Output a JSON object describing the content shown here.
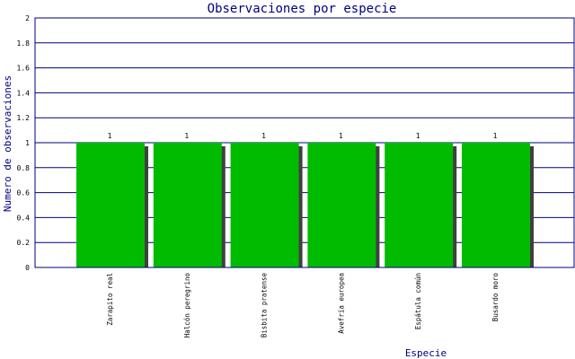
{
  "chart_data": {
    "type": "bar",
    "title": "Observaciones por especie",
    "xlabel": "Especie",
    "ylabel": "Numero de observaciones",
    "categories": [
      "Zarapito real",
      "Halcón peregrino",
      "Bisbita pratense",
      "Avefría europea",
      "Espátula común",
      "Busardo moro"
    ],
    "values": [
      1,
      1,
      1,
      1,
      1,
      1
    ],
    "data_labels": [
      "1",
      "1",
      "1",
      "1",
      "1",
      "1"
    ],
    "ylim": [
      0,
      2
    ],
    "yticks": [
      "0",
      "0.2",
      "0.4",
      "0.6",
      "0.8",
      "1",
      "1.2",
      "1.4",
      "1.6",
      "1.8",
      "2"
    ],
    "grid": true,
    "legend": "none",
    "colors": {
      "bar": "#00bb00",
      "bar_shadow": "#404040",
      "grid": "#000080",
      "frame": "#000080",
      "text": "#000080"
    }
  }
}
